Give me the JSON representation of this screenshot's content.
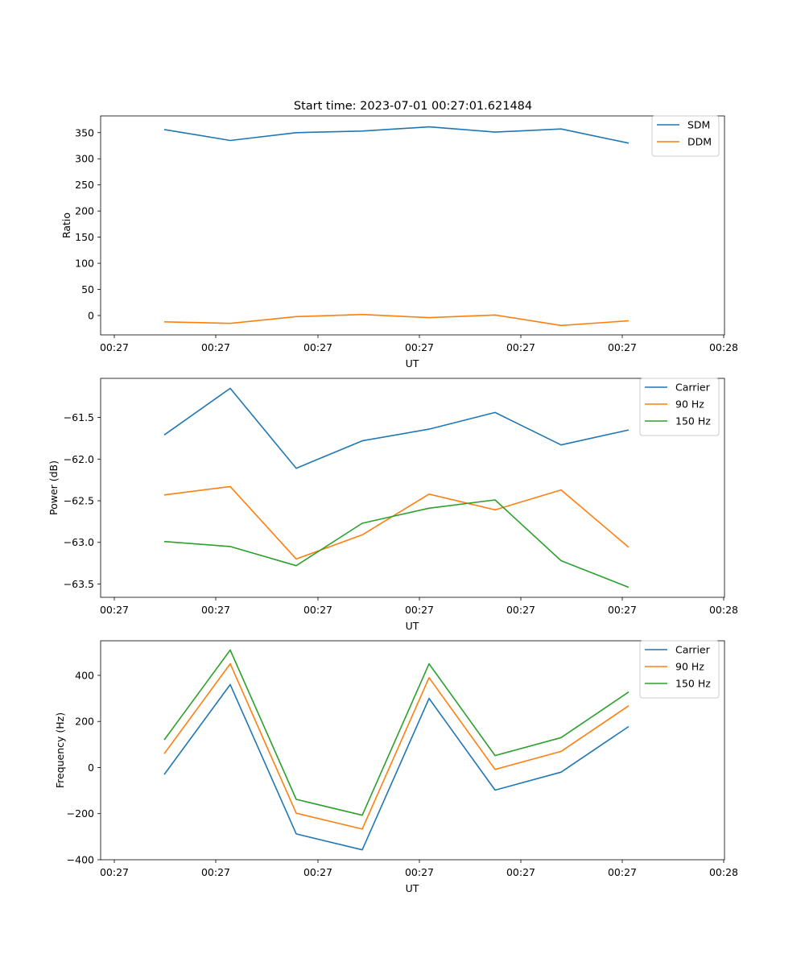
{
  "title": "Start time: 2023-07-01 00:27:01.621484",
  "colors": {
    "blue": "#1f77b4",
    "orange": "#ff7f0e",
    "green": "#2ca02c"
  },
  "chart_data": [
    {
      "type": "line",
      "title": "Start time: 2023-07-01 00:27:01.621484",
      "xlabel": "UT",
      "ylabel": "Ratio",
      "x_tick_labels": [
        "00:27",
        "00:27",
        "00:27",
        "00:27",
        "00:27",
        "00:27",
        "00:27",
        "00:28"
      ],
      "y_ticks": [
        0,
        50,
        100,
        150,
        200,
        250,
        300,
        350
      ],
      "ylim": [
        -37,
        382
      ],
      "x_points": [
        0,
        1,
        2,
        3,
        4,
        5,
        6,
        7
      ],
      "legend_location": "upper right",
      "series": [
        {
          "name": "SDM",
          "color": "#1f77b4",
          "values": [
            356,
            335,
            350,
            353,
            361,
            351,
            357,
            330
          ]
        },
        {
          "name": "DDM",
          "color": "#ff7f0e",
          "values": [
            -12,
            -15,
            -2,
            2,
            -4,
            1,
            -19,
            -10
          ]
        }
      ]
    },
    {
      "type": "line",
      "xlabel": "UT",
      "ylabel": "Power (dB)",
      "x_tick_labels": [
        "00:27",
        "00:27",
        "00:27",
        "00:27",
        "00:27",
        "00:27",
        "00:27",
        "00:28"
      ],
      "y_ticks": [
        -63.5,
        -63.0,
        -62.5,
        -62.0,
        -61.5
      ],
      "y_tick_labels": [
        "−63.5",
        "−63.0",
        "−62.5",
        "−62.0",
        "−61.5"
      ],
      "ylim": [
        -63.66,
        -61.03
      ],
      "x_points": [
        0,
        1,
        2,
        3,
        4,
        5,
        6,
        7
      ],
      "legend_location": "upper right",
      "series": [
        {
          "name": "Carrier",
          "color": "#1f77b4",
          "values": [
            -61.71,
            -61.15,
            -62.11,
            -61.78,
            -61.64,
            -61.44,
            -61.83,
            -61.65
          ]
        },
        {
          "name": "90 Hz",
          "color": "#ff7f0e",
          "values": [
            -62.43,
            -62.33,
            -63.2,
            -62.91,
            -62.42,
            -62.61,
            -62.37,
            -63.06
          ]
        },
        {
          "name": "150 Hz",
          "color": "#2ca02c",
          "values": [
            -62.99,
            -63.05,
            -63.28,
            -62.77,
            -62.59,
            -62.49,
            -63.22,
            -63.54
          ]
        }
      ]
    },
    {
      "type": "line",
      "xlabel": "UT",
      "ylabel": "Frequency (Hz)",
      "x_tick_labels": [
        "00:27",
        "00:27",
        "00:27",
        "00:27",
        "00:27",
        "00:27",
        "00:27",
        "00:28"
      ],
      "y_ticks": [
        -400,
        -200,
        0,
        200,
        400
      ],
      "y_tick_labels": [
        "−400",
        "−200",
        "0",
        "200",
        "400"
      ],
      "ylim": [
        -400,
        550
      ],
      "x_points": [
        0,
        1,
        2,
        3,
        4,
        5,
        6,
        7
      ],
      "legend_location": "upper right",
      "series": [
        {
          "name": "Carrier",
          "color": "#1f77b4",
          "values": [
            -30,
            360,
            -288,
            -357,
            300,
            -98,
            -20,
            178
          ]
        },
        {
          "name": "90 Hz",
          "color": "#ff7f0e",
          "values": [
            60,
            450,
            -198,
            -267,
            390,
            -8,
            70,
            268
          ]
        },
        {
          "name": "150 Hz",
          "color": "#2ca02c",
          "values": [
            120,
            510,
            -138,
            -207,
            450,
            52,
            130,
            328
          ]
        }
      ]
    }
  ]
}
